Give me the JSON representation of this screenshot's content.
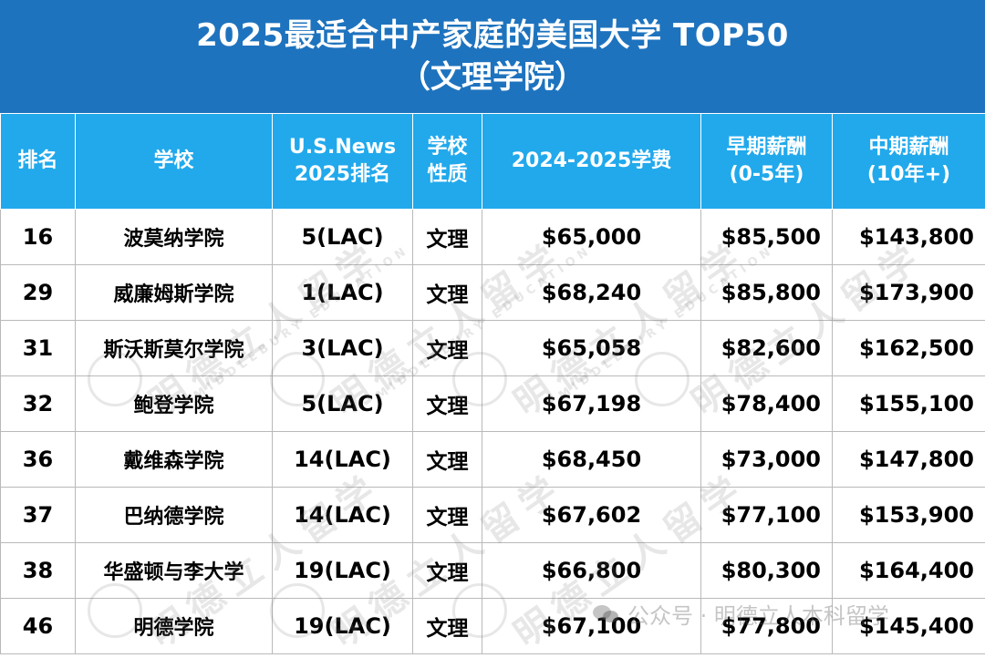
{
  "title": {
    "line1": "2025最适合中产家庭的美国大学 TOP50",
    "line2": "（文理学院）"
  },
  "table": {
    "headers": [
      {
        "l1": "排名",
        "l2": ""
      },
      {
        "l1": "学校",
        "l2": ""
      },
      {
        "l1": "U.S.News",
        "l2": "2025排名"
      },
      {
        "l1": "学校",
        "l2": "性质"
      },
      {
        "l1": "2024-2025学费",
        "l2": ""
      },
      {
        "l1": "早期薪酬",
        "l2": "(0-5年)"
      },
      {
        "l1": "中期薪酬",
        "l2": "(10年+)"
      }
    ],
    "rows": [
      {
        "rank": "16",
        "school": "波莫纳学院",
        "usnews": "5(LAC)",
        "type": "文理",
        "tuition": "$65,000",
        "early": "$85,500",
        "mid": "$143,800"
      },
      {
        "rank": "29",
        "school": "威廉姆斯学院",
        "usnews": "1(LAC)",
        "type": "文理",
        "tuition": "$68,240",
        "early": "$85,800",
        "mid": "$173,900"
      },
      {
        "rank": "31",
        "school": "斯沃斯莫尔学院",
        "usnews": "3(LAC)",
        "type": "文理",
        "tuition": "$65,058",
        "early": "$82,600",
        "mid": "$162,500"
      },
      {
        "rank": "32",
        "school": "鲍登学院",
        "usnews": "5(LAC)",
        "type": "文理",
        "tuition": "$67,198",
        "early": "$78,400",
        "mid": "$155,100"
      },
      {
        "rank": "36",
        "school": "戴维森学院",
        "usnews": "14(LAC)",
        "type": "文理",
        "tuition": "$68,450",
        "early": "$73,000",
        "mid": "$147,800"
      },
      {
        "rank": "37",
        "school": "巴纳德学院",
        "usnews": "14(LAC)",
        "type": "文理",
        "tuition": "$67,602",
        "early": "$77,100",
        "mid": "$153,900"
      },
      {
        "rank": "38",
        "school": "华盛顿与李大学",
        "usnews": "19(LAC)",
        "type": "文理",
        "tuition": "$66,800",
        "early": "$80,300",
        "mid": "$164,400"
      },
      {
        "rank": "46",
        "school": "明德学院",
        "usnews": "19(LAC)",
        "type": "文理",
        "tuition": "$67,100",
        "early": "$77,800",
        "mid": "$145,400"
      }
    ]
  },
  "watermark": {
    "cn": "明德立人留学",
    "en": "MIDDLEBURY EDUCATION"
  },
  "footer": {
    "text": "公众号 · 明德立人本科留学",
    "icon": "wechat-icon"
  },
  "colors": {
    "title_bg": "#1e73be",
    "header_bg": "#21a9ec",
    "header_text": "#ffffff",
    "grid": "#b9b9b9"
  }
}
